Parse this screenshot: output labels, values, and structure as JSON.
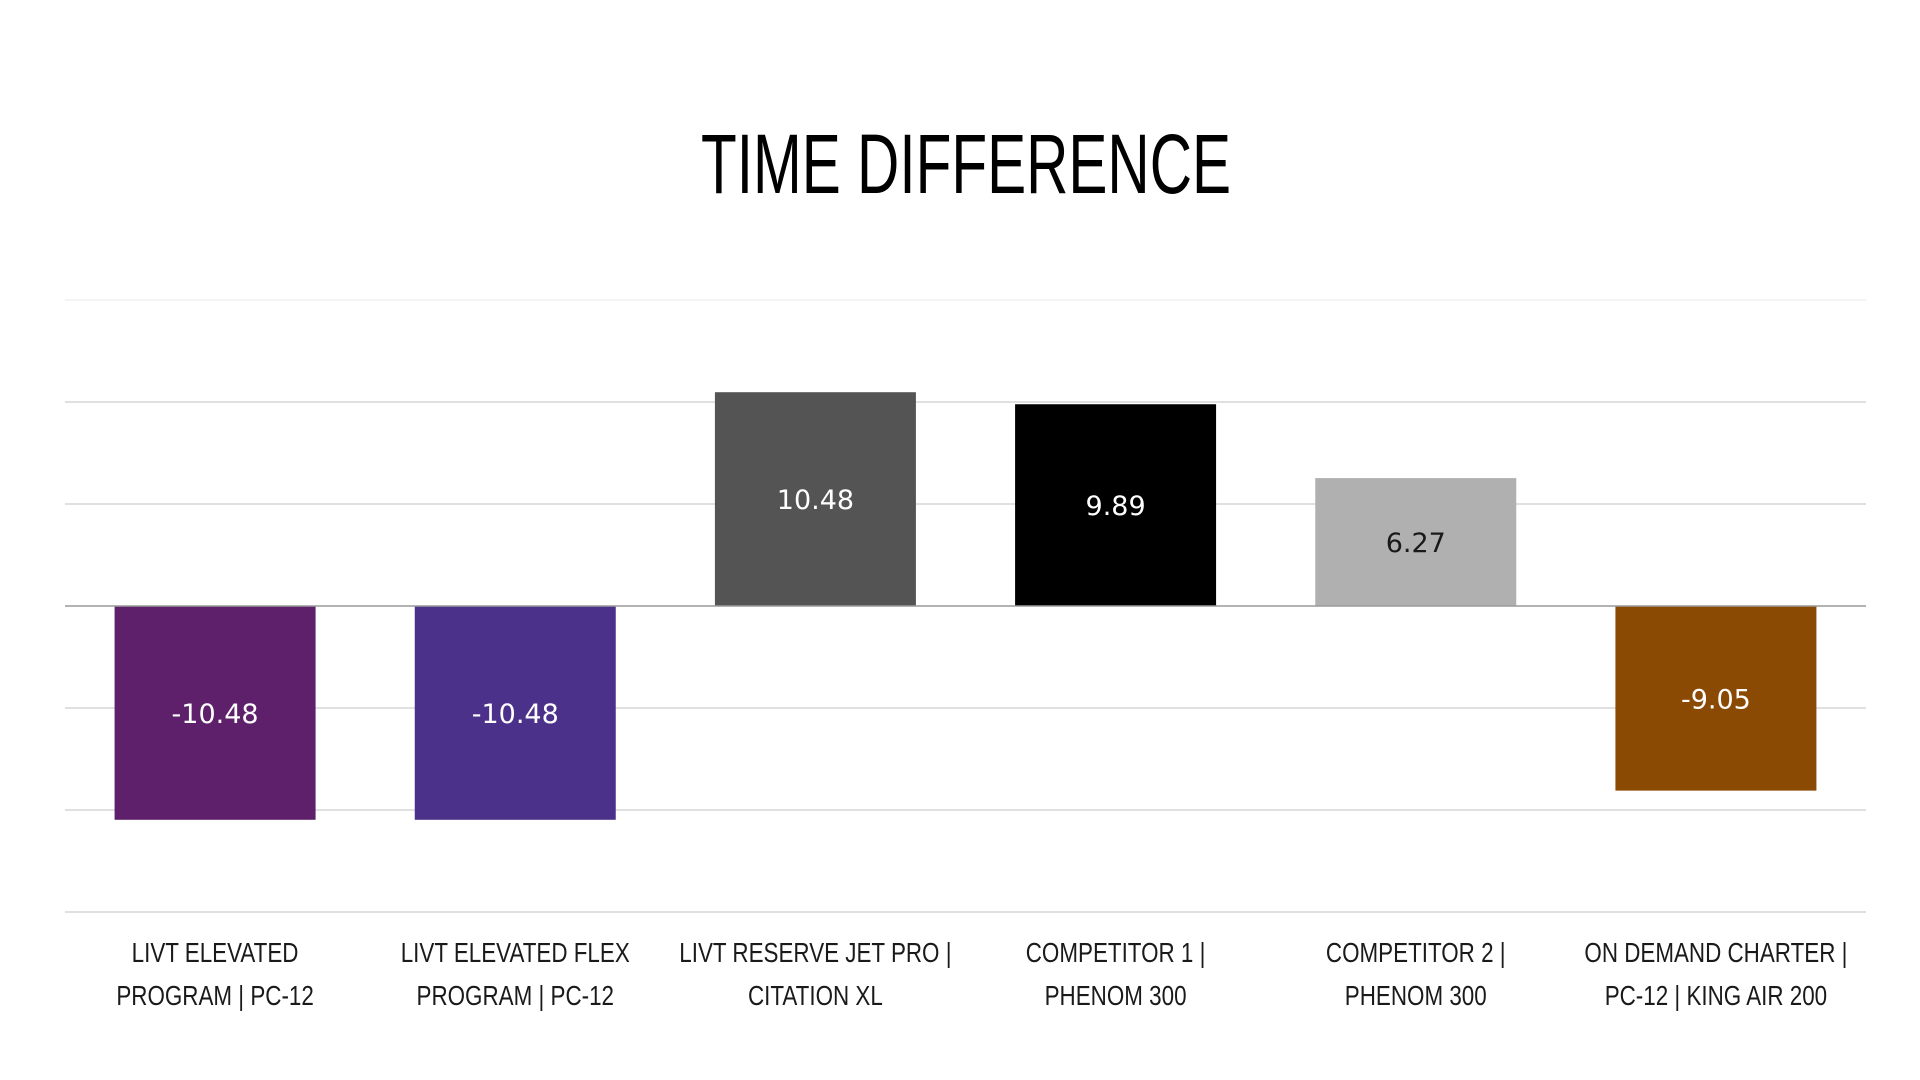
{
  "chart_data": {
    "type": "bar",
    "title": "TIME DIFFERENCE",
    "categories": [
      [
        "LIVT ELEVATED",
        "PROGRAM | PC-12"
      ],
      [
        "LIVT ELEVATED FLEX",
        "PROGRAM | PC-12"
      ],
      [
        "LIVT RESERVE JET PRO |",
        "CITATION XL"
      ],
      [
        "COMPETITOR 1 |",
        "PHENOM 300"
      ],
      [
        "COMPETITOR 2 |",
        "PHENOM 300"
      ],
      [
        "ON DEMAND CHARTER |",
        "PC-12 | KING AIR 200"
      ]
    ],
    "values": [
      -10.48,
      -10.48,
      10.48,
      9.89,
      6.27,
      -9.05
    ],
    "data_labels": [
      "-10.48",
      "-10.48",
      "10.48",
      "9.89",
      "6.27",
      "-9.05"
    ],
    "bar_colors": [
      "#5e206b",
      "#4c318a",
      "#545454",
      "#000000",
      "#b0b0b0",
      "#8b4a04"
    ],
    "label_colors": [
      "#ffffff",
      "#ffffff",
      "#ffffff",
      "#ffffff",
      "#1a1a1a",
      "#ffffff"
    ],
    "ylim": [
      -15,
      15
    ],
    "gridline_step": 5,
    "grid": true,
    "legend": "none",
    "xlabel": "",
    "ylabel": ""
  }
}
